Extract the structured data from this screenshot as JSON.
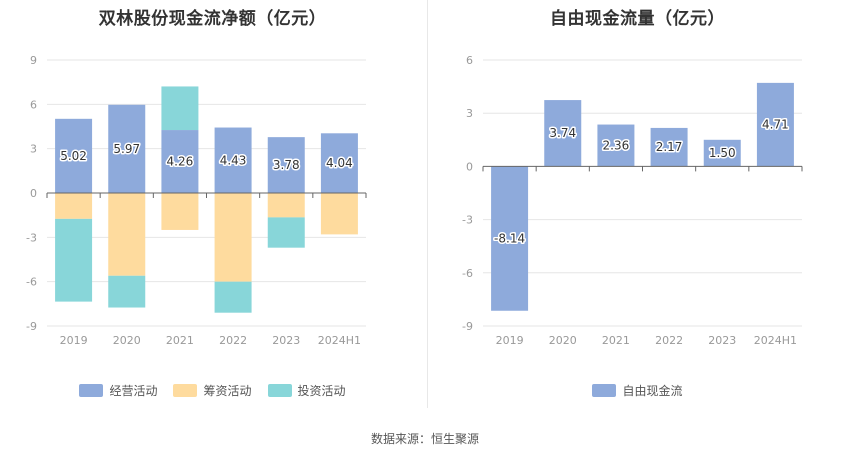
{
  "source": "数据来源：恒生聚源",
  "chart_data": [
    {
      "type": "bar",
      "stacked": true,
      "title": "双林股份现金流净额（亿元）",
      "categories": [
        "2019",
        "2020",
        "2021",
        "2022",
        "2023",
        "2024H1"
      ],
      "ylim": [
        -9,
        9
      ],
      "yticks": [
        -9,
        -6,
        -3,
        0,
        3,
        6,
        9
      ],
      "grid": true,
      "legend_position": "bottom",
      "series": [
        {
          "name": "经营活动",
          "color": "#8eaadb",
          "values": [
            5.02,
            5.97,
            4.26,
            4.43,
            3.78,
            4.04
          ],
          "labels": [
            "5.02",
            "5.97",
            "4.26",
            "4.43",
            "3.78",
            "4.04"
          ]
        },
        {
          "name": "筹资活动",
          "color": "#fedb9e",
          "values": [
            -1.75,
            -5.6,
            -2.5,
            -6.0,
            -1.65,
            -2.8
          ]
        },
        {
          "name": "投资活动",
          "color": "#88d6d9",
          "values": [
            -5.6,
            -2.15,
            2.95,
            -2.1,
            -2.05,
            0
          ]
        }
      ]
    },
    {
      "type": "bar",
      "title": "自由现金流量（亿元）",
      "categories": [
        "2019",
        "2020",
        "2021",
        "2022",
        "2023",
        "2024H1"
      ],
      "ylim": [
        -9,
        6
      ],
      "yticks": [
        -9,
        -6,
        -3,
        0,
        3,
        6
      ],
      "grid": true,
      "legend_position": "bottom",
      "series": [
        {
          "name": "自由现金流",
          "color": "#8eaadb",
          "values": [
            -8.14,
            3.74,
            2.36,
            2.17,
            1.5,
            4.71
          ],
          "labels": [
            "-8.14",
            "3.74",
            "2.36",
            "2.17",
            "1.50",
            "4.71"
          ]
        }
      ]
    }
  ]
}
